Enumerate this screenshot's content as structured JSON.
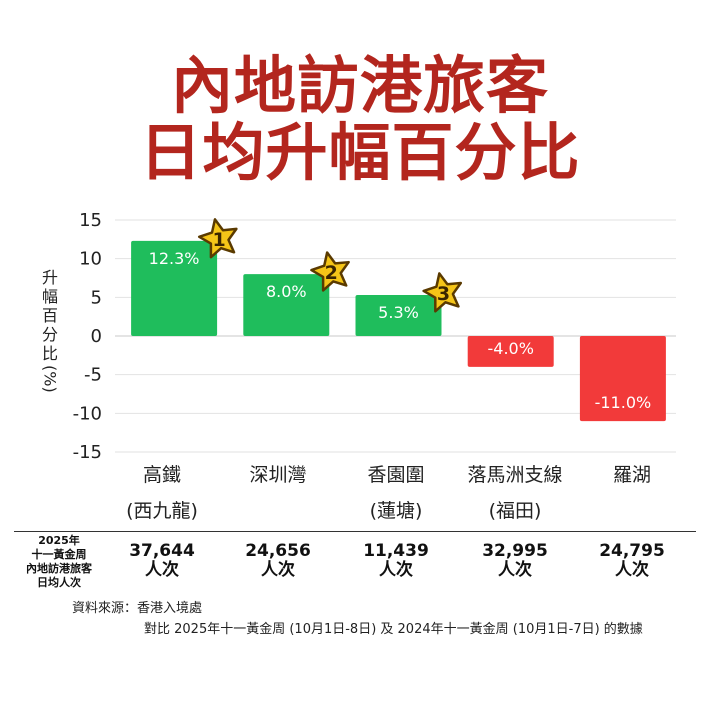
{
  "title_line1": "內地訪港旅客",
  "title_line2": "日均升幅百分比",
  "chart_data": {
    "type": "bar",
    "ylabel_chars": [
      "升",
      "幅",
      "百",
      "分",
      "比",
      "(%)"
    ],
    "ylim": [
      -15,
      15
    ],
    "yticks": [
      15,
      10,
      5,
      0,
      -5,
      -10,
      -15
    ],
    "grid": true,
    "legend": "none",
    "categories": [
      {
        "line1": "高鐵",
        "line2": "(西九龍)"
      },
      {
        "line1": "深圳灣",
        "line2": ""
      },
      {
        "line1": "香園圍",
        "line2": "(蓮塘)"
      },
      {
        "line1": "落馬洲支線",
        "line2": "(福田)"
      },
      {
        "line1": "羅湖",
        "line2": ""
      }
    ],
    "values": [
      12.3,
      8.0,
      5.3,
      -4.0,
      -11.0
    ],
    "value_labels": [
      "12.3%",
      "8.0%",
      "5.3%",
      "-4.0%",
      "-11.0%"
    ],
    "ranks": [
      "1",
      "2",
      "3"
    ],
    "colors": {
      "positive": "#1fbd5c",
      "negative": "#f23a3a",
      "star": "#f5c518"
    }
  },
  "row_label": [
    "2025年",
    "十一黃金周",
    "內地訪港旅客",
    "日均人次"
  ],
  "daily_counts": [
    {
      "value": "37,644",
      "unit": "人次"
    },
    {
      "value": "24,656",
      "unit": "人次"
    },
    {
      "value": "11,439",
      "unit": "人次"
    },
    {
      "value": "32,995",
      "unit": "人次"
    },
    {
      "value": "24,795",
      "unit": "人次"
    }
  ],
  "source_line1": "資料來源：香港入境處",
  "source_line2": "對比 2025年十一黃金周 (10月1日-8日) 及 2024年十一黃金周 (10月1日-7日) 的數據"
}
